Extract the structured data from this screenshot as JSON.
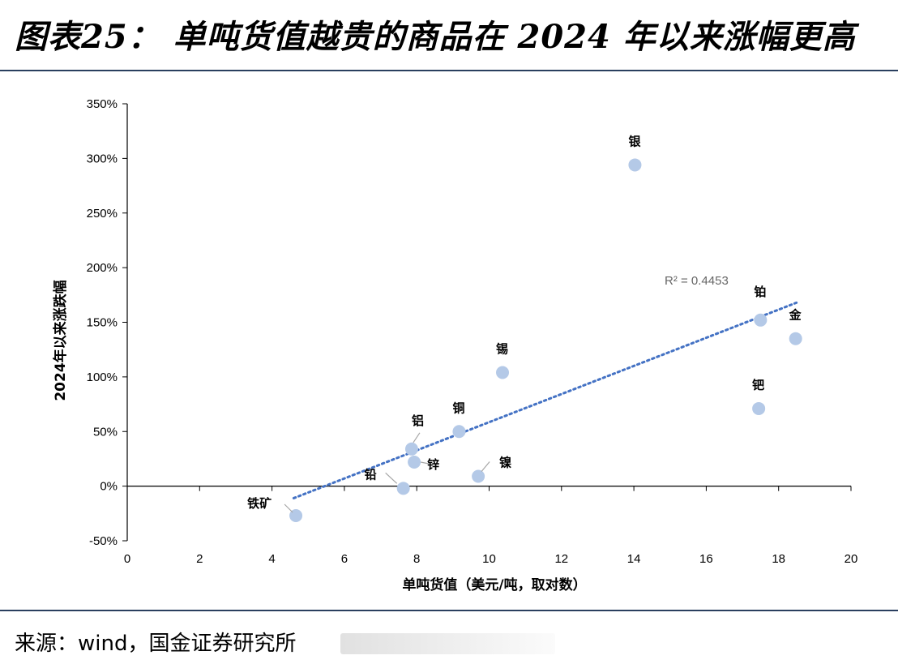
{
  "header": {
    "title": "图表25： 单吨货值越贵的商品在 2024 年以来涨幅更高"
  },
  "footer": {
    "source": "来源：wind，国金证券研究所"
  },
  "colors": {
    "point": "#b4c9e7",
    "trendline": "#4472c4",
    "rule": "#2a3f5f",
    "leader": "#a6a6a6"
  },
  "chart_data": {
    "type": "scatter",
    "xlabel": "单吨货值（美元/吨，取对数）",
    "ylabel": "2024年以来涨跌幅",
    "xlim": [
      0,
      20
    ],
    "ylim": [
      -0.5,
      3.5
    ],
    "x_ticks": [
      0,
      2,
      4,
      6,
      8,
      10,
      12,
      14,
      16,
      18,
      20
    ],
    "y_ticks": [
      -0.5,
      0,
      0.5,
      1.0,
      1.5,
      2.0,
      2.5,
      3.0,
      3.5
    ],
    "y_tick_labels": [
      "-50%",
      "0%",
      "50%",
      "100%",
      "150%",
      "200%",
      "250%",
      "300%",
      "350%"
    ],
    "grid": false,
    "points": [
      {
        "name": "铁矿",
        "x": 4.66,
        "y": -0.27
      },
      {
        "name": "铅",
        "x": 7.63,
        "y": -0.02
      },
      {
        "name": "铝",
        "x": 7.86,
        "y": 0.34
      },
      {
        "name": "锌",
        "x": 7.93,
        "y": 0.22
      },
      {
        "name": "铜",
        "x": 9.17,
        "y": 0.5
      },
      {
        "name": "镍",
        "x": 9.7,
        "y": 0.09
      },
      {
        "name": "锡",
        "x": 10.37,
        "y": 1.04
      },
      {
        "name": "银",
        "x": 14.03,
        "y": 2.94
      },
      {
        "name": "钯",
        "x": 17.45,
        "y": 0.71
      },
      {
        "name": "铂",
        "x": 17.5,
        "y": 1.52
      },
      {
        "name": "金",
        "x": 18.47,
        "y": 1.35
      }
    ],
    "trendline": {
      "type": "linear",
      "x_range": [
        4.6,
        18.5
      ],
      "y_range": [
        -0.11,
        1.68
      ],
      "r2_label": "R² = 0.4453"
    }
  }
}
